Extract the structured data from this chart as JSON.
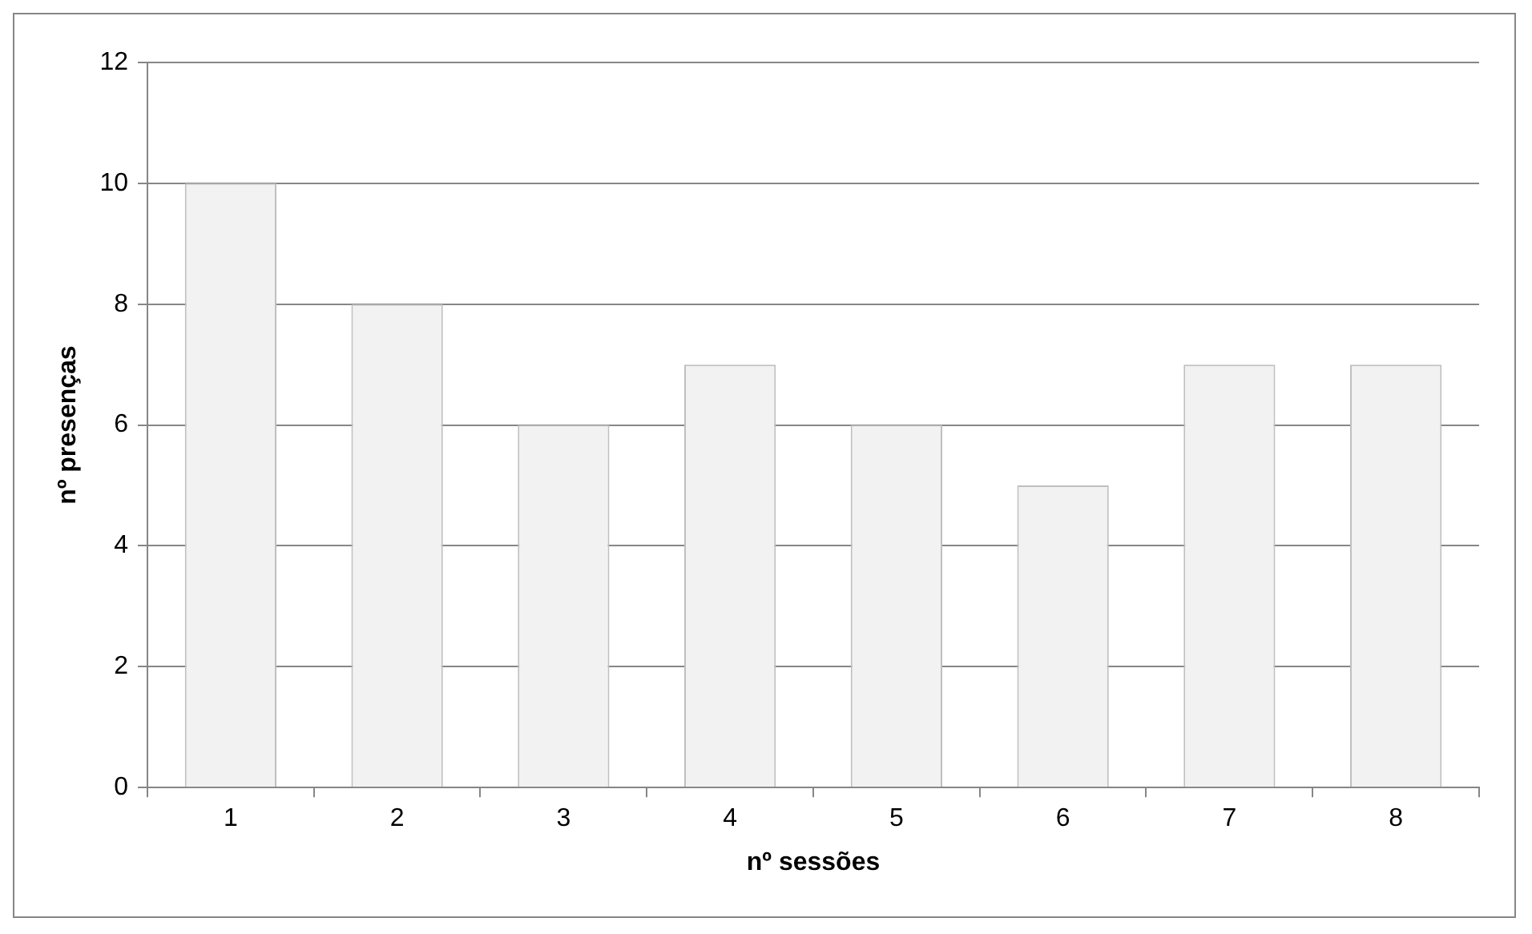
{
  "chart_data": {
    "type": "bar",
    "xlabel": "nº sessões",
    "ylabel": "nº presenças",
    "categories": [
      "1",
      "2",
      "3",
      "4",
      "5",
      "6",
      "7",
      "8"
    ],
    "values": [
      10,
      8,
      6,
      7,
      6,
      5,
      7,
      7
    ],
    "color": "#f2f2f2",
    "ylim": [
      0,
      12
    ],
    "yticks": [
      0,
      2,
      4,
      6,
      8,
      10,
      12
    ],
    "grid": "y",
    "legend": false
  }
}
